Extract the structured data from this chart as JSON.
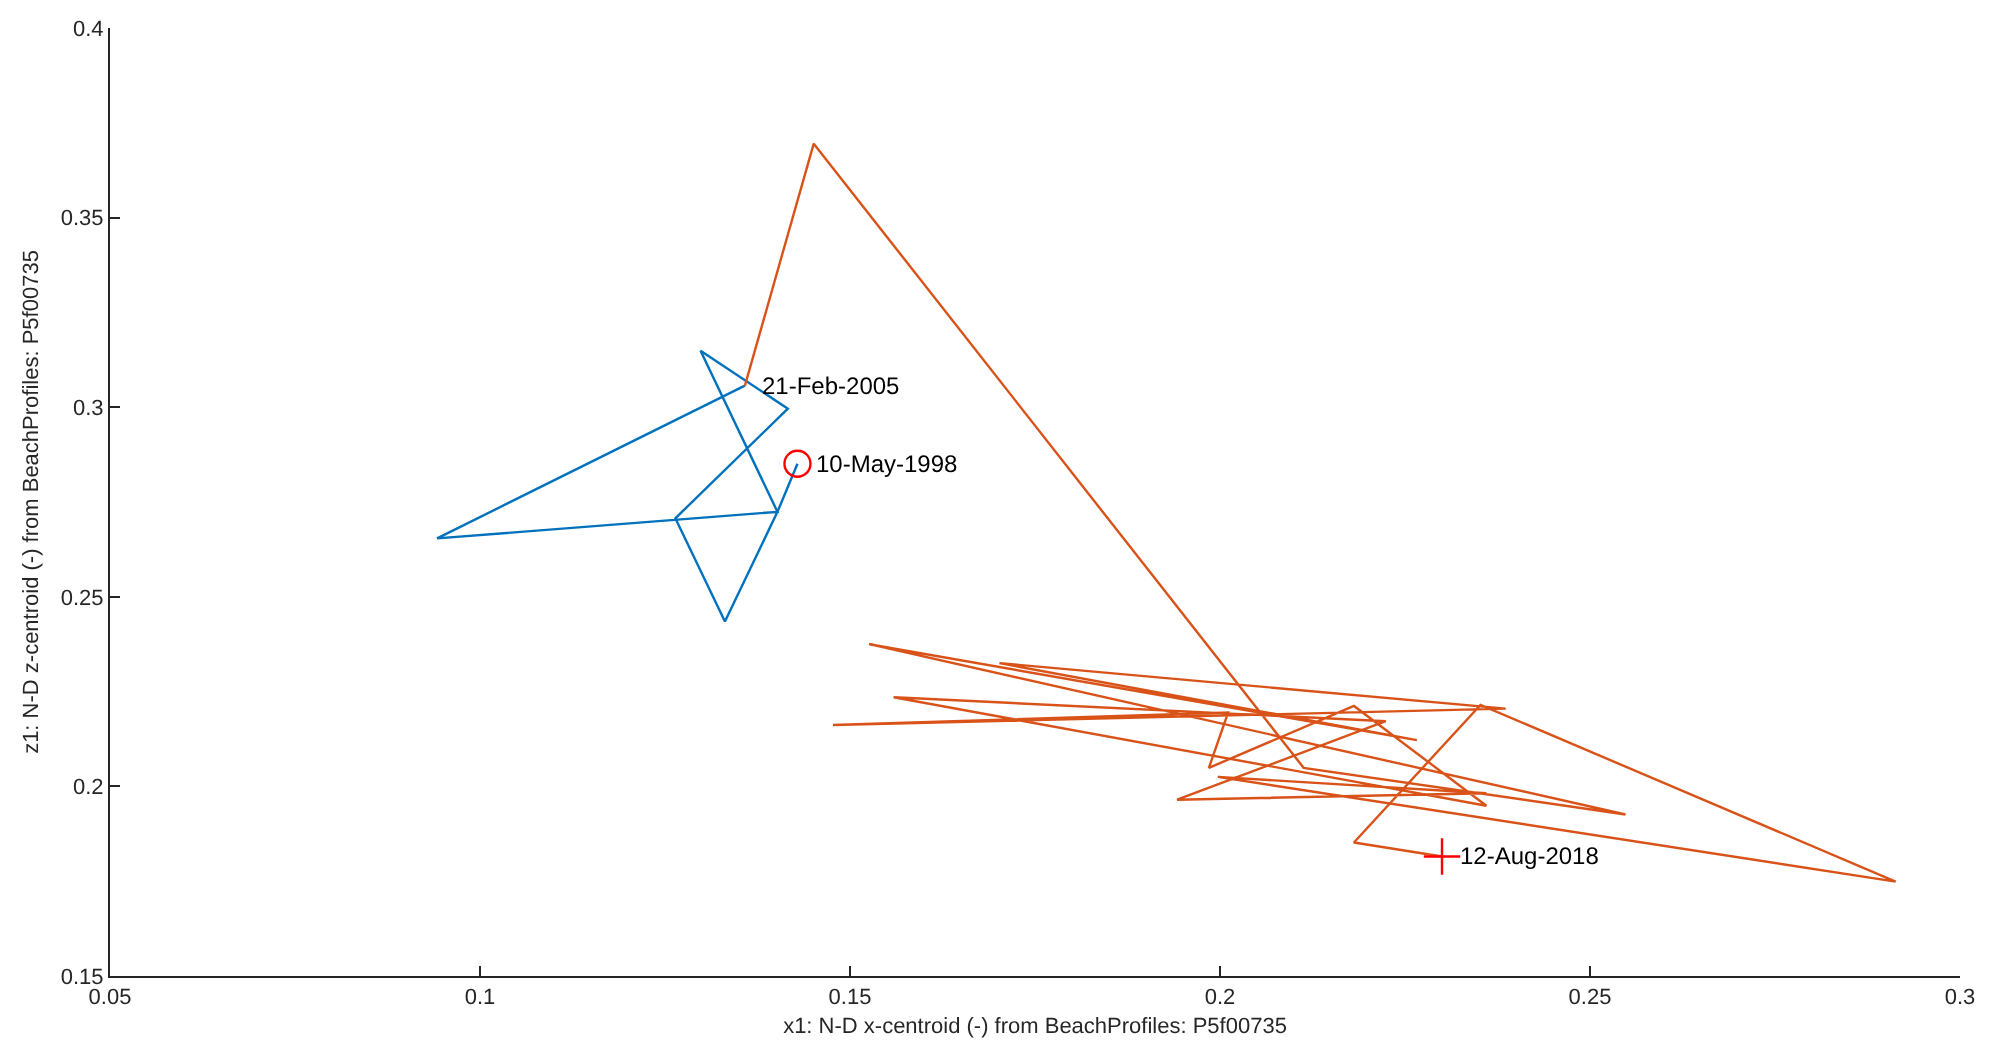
{
  "chart_data": {
    "type": "line",
    "xlabel": "x1: N-D x-centroid (-) from BeachProfiles: P5f00735",
    "ylabel": "z1: N-D z-centroid (-) from BeachProfiles: P5f00735",
    "xlim": [
      0.05,
      0.3
    ],
    "xticks": [
      0.05,
      0.1,
      0.15,
      0.2,
      0.25,
      0.3
    ],
    "ylim": [
      0.15,
      0.4
    ],
    "yticks": [
      0.15,
      0.2,
      0.25,
      0.3,
      0.35,
      0.4
    ],
    "marker": "none",
    "line_style": "solid",
    "series": [
      {
        "color": "#0072bd",
        "x": [
          0.1429,
          0.1402,
          0.1331,
          0.1264,
          0.1416,
          0.1298,
          0.1402,
          0.0942,
          0.1358
        ],
        "values": [
          0.2851,
          0.2724,
          0.2435,
          0.2707,
          0.2996,
          0.3149,
          0.2724,
          0.2654,
          0.3057
        ]
      },
      {
        "color": "#d95319",
        "x": [
          0.1358,
          0.1451,
          0.2113,
          0.2548,
          0.1526,
          0.2266,
          0.1702,
          0.2386,
          0.1477,
          0.2011,
          0.1985,
          0.2181,
          0.236,
          0.1559,
          0.2224,
          0.1942,
          0.236,
          0.1997,
          0.2913,
          0.2352,
          0.2181,
          0.23
        ],
        "values": [
          0.3057,
          0.3695,
          0.2049,
          0.1926,
          0.2375,
          0.2122,
          0.2325,
          0.2205,
          0.2162,
          0.2195,
          0.2049,
          0.2212,
          0.1949,
          0.2235,
          0.2172,
          0.1965,
          0.1982,
          0.2025,
          0.1749,
          0.2215,
          0.1852,
          0.1815
        ]
      },
      {
        "type": "scatter",
        "marker": "circle",
        "color": "#ff0000",
        "x": [
          0.1429
        ],
        "values": [
          0.2851
        ]
      },
      {
        "type": "scatter",
        "marker": "cross",
        "color": "#ff0000",
        "x": [
          0.23
        ],
        "values": [
          0.1815
        ]
      }
    ],
    "annotations": [
      {
        "text": "10-May-1998",
        "x": 0.1429,
        "y": 0.2851
      },
      {
        "text": "21-Feb-2005",
        "x": 0.1358,
        "y": 0.3057
      },
      {
        "text": "12-Aug-2018",
        "x": 0.23,
        "y": 0.1815
      }
    ]
  }
}
